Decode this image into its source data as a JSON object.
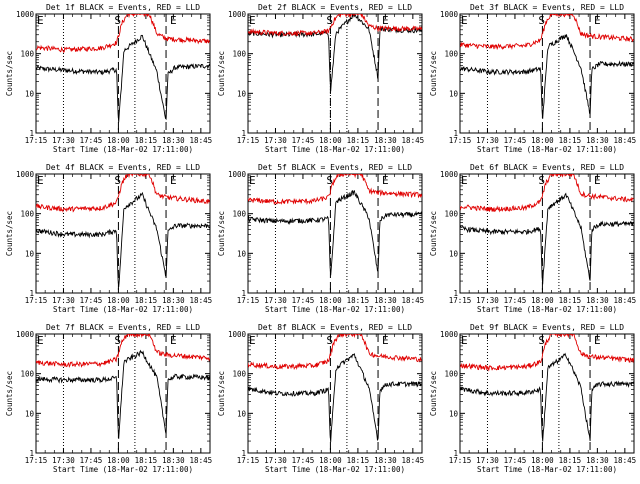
{
  "start_time_label": "Start Time (18-Mar-02 17:11:00)",
  "ylabel": "Counts/sec",
  "x_tick_labels": [
    "17:15",
    "17:30",
    "17:45",
    "18:00",
    "18:15",
    "18:30",
    "18:45"
  ],
  "y_tick_labels": [
    "1",
    "10",
    "100",
    "1000"
  ],
  "markers": {
    "start": "S",
    "end": "E"
  },
  "colors": {
    "events": "#000000",
    "lld": "#e00000"
  },
  "chart_data": [
    {
      "type": "line",
      "title": "Det 1f BLACK = Events, RED = LLD",
      "xlim_min": [
        4,
        99
      ],
      "ylim": [
        1,
        1000
      ],
      "yscale": "log",
      "dotted_lines_min": [
        4,
        19,
        58
      ],
      "dashed_lines_min": [
        49,
        75
      ],
      "series": [
        {
          "name": "Events",
          "color": "#000000",
          "points": [
            [
              0,
              45
            ],
            [
              20,
              38
            ],
            [
              40,
              34
            ],
            [
              48,
              40
            ],
            [
              49,
              1.5
            ],
            [
              52,
              120
            ],
            [
              62,
              280
            ],
            [
              70,
              35
            ],
            [
              75,
              2
            ],
            [
              76,
              30
            ],
            [
              80,
              45
            ],
            [
              99,
              50
            ]
          ]
        },
        {
          "name": "LLD",
          "color": "#e00000",
          "points": [
            [
              0,
              150
            ],
            [
              20,
              125
            ],
            [
              40,
              140
            ],
            [
              48,
              190
            ],
            [
              51,
              600
            ],
            [
              54,
              1000
            ],
            [
              66,
              1000
            ],
            [
              70,
              320
            ],
            [
              75,
              240
            ],
            [
              99,
              205
            ]
          ]
        }
      ]
    },
    {
      "type": "line",
      "title": "Det 2f BLACK = Events, RED = LLD",
      "xlim_min": [
        4,
        99
      ],
      "ylim": [
        1,
        1000
      ],
      "yscale": "log",
      "dotted_lines_min": [
        4,
        49,
        58
      ],
      "dashed_lines_min": [
        49,
        75
      ],
      "series": [
        {
          "name": "Events",
          "color": "#000000",
          "points": [
            [
              0,
              340
            ],
            [
              20,
              300
            ],
            [
              40,
              310
            ],
            [
              48,
              340
            ],
            [
              49,
              10
            ],
            [
              52,
              330
            ],
            [
              62,
              1000
            ],
            [
              70,
              420
            ],
            [
              75,
              25
            ],
            [
              76,
              420
            ],
            [
              99,
              380
            ]
          ]
        },
        {
          "name": "LLD",
          "color": "#e00000",
          "points": [
            [
              0,
              370
            ],
            [
              20,
              330
            ],
            [
              40,
              330
            ],
            [
              48,
              370
            ],
            [
              51,
              700
            ],
            [
              54,
              1000
            ],
            [
              66,
              1000
            ],
            [
              70,
              500
            ],
            [
              75,
              440
            ],
            [
              99,
              420
            ]
          ]
        }
      ]
    },
    {
      "type": "line",
      "title": "Det 3f BLACK = Events, RED = LLD",
      "xlim_min": [
        4,
        99
      ],
      "ylim": [
        1,
        1000
      ],
      "yscale": "log",
      "dotted_lines_min": [
        4,
        19,
        58
      ],
      "dashed_lines_min": [
        49,
        75
      ],
      "series": [
        {
          "name": "Events",
          "color": "#000000",
          "points": [
            [
              0,
              45
            ],
            [
              20,
              35
            ],
            [
              40,
              35
            ],
            [
              48,
              42
            ],
            [
              49,
              2
            ],
            [
              52,
              150
            ],
            [
              62,
              300
            ],
            [
              70,
              45
            ],
            [
              75,
              3
            ],
            [
              76,
              40
            ],
            [
              80,
              55
            ],
            [
              99,
              55
            ]
          ]
        },
        {
          "name": "LLD",
          "color": "#e00000",
          "points": [
            [
              0,
              175
            ],
            [
              20,
              150
            ],
            [
              40,
              160
            ],
            [
              48,
              220
            ],
            [
              51,
              650
            ],
            [
              54,
              1000
            ],
            [
              66,
              1000
            ],
            [
              70,
              320
            ],
            [
              75,
              280
            ],
            [
              99,
              230
            ]
          ]
        }
      ]
    },
    {
      "type": "line",
      "title": "Det 4f BLACK = Events, RED = LLD",
      "xlim_min": [
        4,
        99
      ],
      "ylim": [
        1,
        1000
      ],
      "yscale": "log",
      "dotted_lines_min": [
        4,
        19,
        58
      ],
      "dashed_lines_min": [
        49,
        75
      ],
      "series": [
        {
          "name": "Events",
          "color": "#000000",
          "points": [
            [
              0,
              40
            ],
            [
              20,
              30
            ],
            [
              40,
              30
            ],
            [
              48,
              38
            ],
            [
              49,
              1
            ],
            [
              52,
              140
            ],
            [
              62,
              300
            ],
            [
              70,
              40
            ],
            [
              75,
              2.5
            ],
            [
              76,
              35
            ],
            [
              80,
              50
            ],
            [
              99,
              50
            ]
          ]
        },
        {
          "name": "LLD",
          "color": "#e00000",
          "points": [
            [
              0,
              160
            ],
            [
              20,
              130
            ],
            [
              40,
              140
            ],
            [
              48,
              190
            ],
            [
              51,
              600
            ],
            [
              54,
              1000
            ],
            [
              66,
              1000
            ],
            [
              70,
              300
            ],
            [
              75,
              260
            ],
            [
              99,
              200
            ]
          ]
        }
      ]
    },
    {
      "type": "line",
      "title": "Det 5f BLACK = Events, RED = LLD",
      "xlim_min": [
        4,
        99
      ],
      "ylim": [
        1,
        1000
      ],
      "yscale": "log",
      "dotted_lines_min": [
        4,
        19,
        58
      ],
      "dashed_lines_min": [
        49,
        75
      ],
      "series": [
        {
          "name": "Events",
          "color": "#000000",
          "points": [
            [
              0,
              75
            ],
            [
              20,
              65
            ],
            [
              40,
              68
            ],
            [
              48,
              75
            ],
            [
              49,
              2
            ],
            [
              52,
              200
            ],
            [
              62,
              350
            ],
            [
              70,
              80
            ],
            [
              75,
              3
            ],
            [
              76,
              70
            ],
            [
              80,
              95
            ],
            [
              99,
              95
            ]
          ]
        },
        {
          "name": "LLD",
          "color": "#e00000",
          "points": [
            [
              0,
              230
            ],
            [
              20,
              200
            ],
            [
              40,
              210
            ],
            [
              48,
              260
            ],
            [
              51,
              700
            ],
            [
              54,
              1000
            ],
            [
              66,
              1000
            ],
            [
              70,
              380
            ],
            [
              75,
              340
            ],
            [
              99,
              300
            ]
          ]
        }
      ]
    },
    {
      "type": "line",
      "title": "Det 6f BLACK = Events, RED = LLD",
      "xlim_min": [
        4,
        99
      ],
      "ylim": [
        1,
        1000
      ],
      "yscale": "log",
      "dotted_lines_min": [
        4,
        19,
        58
      ],
      "dashed_lines_min": [
        49,
        75
      ],
      "series": [
        {
          "name": "Events",
          "color": "#000000",
          "points": [
            [
              0,
              45
            ],
            [
              20,
              35
            ],
            [
              40,
              35
            ],
            [
              48,
              42
            ],
            [
              49,
              1.5
            ],
            [
              52,
              140
            ],
            [
              62,
              300
            ],
            [
              70,
              45
            ],
            [
              75,
              2
            ],
            [
              76,
              40
            ],
            [
              80,
              55
            ],
            [
              99,
              55
            ]
          ]
        },
        {
          "name": "LLD",
          "color": "#e00000",
          "points": [
            [
              0,
              160
            ],
            [
              20,
              130
            ],
            [
              40,
              140
            ],
            [
              48,
              200
            ],
            [
              51,
              600
            ],
            [
              54,
              1000
            ],
            [
              66,
              1000
            ],
            [
              70,
              320
            ],
            [
              75,
              280
            ],
            [
              99,
              220
            ]
          ]
        }
      ]
    },
    {
      "type": "line",
      "title": "Det 7f BLACK = Events, RED = LLD",
      "xlim_min": [
        4,
        99
      ],
      "ylim": [
        1,
        1000
      ],
      "yscale": "log",
      "dotted_lines_min": [
        4,
        19,
        58
      ],
      "dashed_lines_min": [
        49,
        75
      ],
      "series": [
        {
          "name": "Events",
          "color": "#000000",
          "points": [
            [
              0,
              75
            ],
            [
              20,
              70
            ],
            [
              40,
              70
            ],
            [
              48,
              78
            ],
            [
              49,
              2
            ],
            [
              52,
              200
            ],
            [
              62,
              350
            ],
            [
              70,
              80
            ],
            [
              75,
              3
            ],
            [
              76,
              70
            ],
            [
              80,
              85
            ],
            [
              99,
              80
            ]
          ]
        },
        {
          "name": "LLD",
          "color": "#e00000",
          "points": [
            [
              0,
              200
            ],
            [
              20,
              170
            ],
            [
              40,
              180
            ],
            [
              48,
              230
            ],
            [
              51,
              650
            ],
            [
              54,
              1000
            ],
            [
              66,
              1000
            ],
            [
              70,
              350
            ],
            [
              75,
              300
            ],
            [
              99,
              250
            ]
          ]
        }
      ]
    },
    {
      "type": "line",
      "title": "Det 8f BLACK = Events, RED = LLD",
      "xlim_min": [
        4,
        99
      ],
      "ylim": [
        1,
        1000
      ],
      "yscale": "log",
      "dotted_lines_min": [
        4,
        19,
        58
      ],
      "dashed_lines_min": [
        49,
        75
      ],
      "series": [
        {
          "name": "Events",
          "color": "#000000",
          "points": [
            [
              0,
              45
            ],
            [
              20,
              32
            ],
            [
              40,
              32
            ],
            [
              48,
              40
            ],
            [
              49,
              1.5
            ],
            [
              52,
              140
            ],
            [
              62,
              300
            ],
            [
              70,
              45
            ],
            [
              75,
              2
            ],
            [
              76,
              40
            ],
            [
              80,
              55
            ],
            [
              99,
              55
            ]
          ]
        },
        {
          "name": "LLD",
          "color": "#e00000",
          "points": [
            [
              0,
              180
            ],
            [
              20,
              150
            ],
            [
              40,
              160
            ],
            [
              48,
              210
            ],
            [
              51,
              650
            ],
            [
              54,
              1000
            ],
            [
              66,
              1000
            ],
            [
              70,
              330
            ],
            [
              75,
              280
            ],
            [
              99,
              230
            ]
          ]
        }
      ]
    },
    {
      "type": "line",
      "title": "Det 9f BLACK = Events, RED = LLD",
      "xlim_min": [
        4,
        99
      ],
      "ylim": [
        1,
        1000
      ],
      "yscale": "log",
      "dotted_lines_min": [
        4,
        19,
        58
      ],
      "dashed_lines_min": [
        49,
        75
      ],
      "series": [
        {
          "name": "Events",
          "color": "#000000",
          "points": [
            [
              0,
              45
            ],
            [
              20,
              32
            ],
            [
              40,
              33
            ],
            [
              48,
              40
            ],
            [
              49,
              1.5
            ],
            [
              52,
              140
            ],
            [
              62,
              300
            ],
            [
              70,
              45
            ],
            [
              75,
              2
            ],
            [
              76,
              40
            ],
            [
              80,
              55
            ],
            [
              99,
              55
            ]
          ]
        },
        {
          "name": "LLD",
          "color": "#e00000",
          "points": [
            [
              0,
              170
            ],
            [
              20,
              140
            ],
            [
              40,
              150
            ],
            [
              48,
              200
            ],
            [
              51,
              620
            ],
            [
              54,
              1000
            ],
            [
              66,
              1000
            ],
            [
              70,
              320
            ],
            [
              75,
              270
            ],
            [
              99,
              220
            ]
          ]
        }
      ]
    }
  ]
}
